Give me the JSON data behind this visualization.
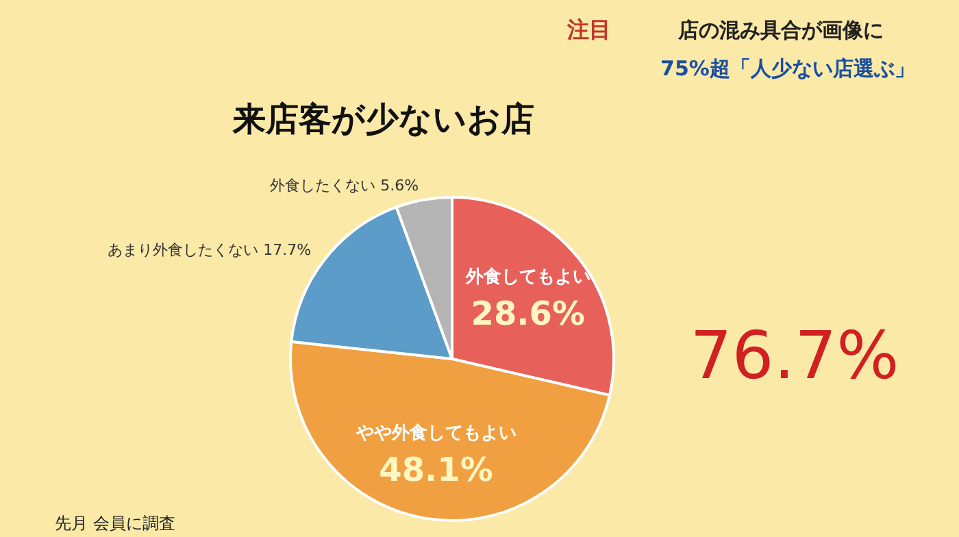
{
  "chart_data": {
    "type": "pie",
    "title": "来店客が少ないお店",
    "categories": [
      "外食してもよい",
      "やや外食してもよい",
      "あまり外食したくない",
      "外食したくない"
    ],
    "values": [
      28.6,
      48.1,
      17.7,
      5.6
    ],
    "colors": [
      "#e8605a",
      "#f0a040",
      "#5b9cc8",
      "#b4b4b4"
    ],
    "value_labels": [
      "28.6%",
      "48.1%",
      "17.7%",
      "5.6%"
    ],
    "legend": false,
    "annotations": [
      "注目",
      "店の混み具合が画像に",
      "75%超「人少ない店選ぶ」",
      "76.7%",
      "先月 会員に調査"
    ]
  }
}
